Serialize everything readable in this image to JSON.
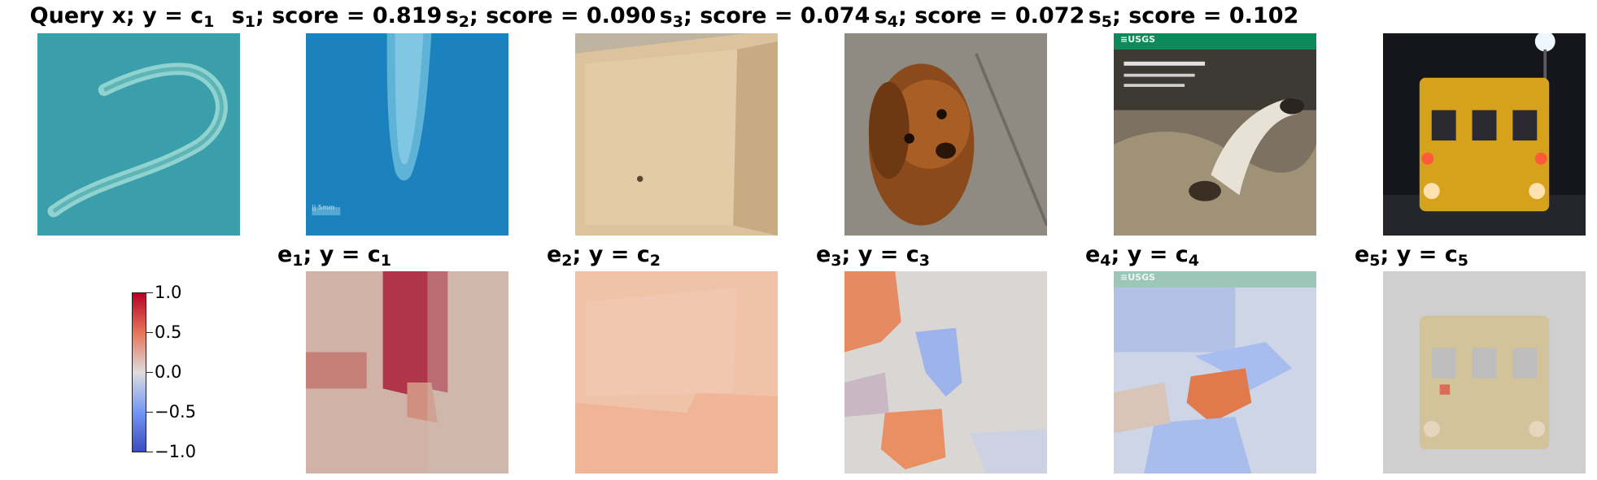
{
  "titles": {
    "query": {
      "prefix": "Query x; y = c",
      "sub": "1"
    },
    "s1": {
      "pre": "s",
      "sub": "1",
      "post": "; score = 0.819"
    },
    "s2": {
      "pre": "s",
      "sub": "2",
      "post": "; score = 0.090"
    },
    "s3": {
      "pre": "s",
      "sub": "3",
      "post": "; score = 0.074"
    },
    "s4": {
      "pre": "s",
      "sub": "4",
      "post": "; score = 0.072"
    },
    "s5": {
      "pre": "s",
      "sub": "5",
      "post": "; score = 0.102"
    },
    "e1": {
      "pre": "e",
      "sub": "1",
      "mid": "; y = c",
      "sub2": "1"
    },
    "e2": {
      "pre": "e",
      "sub": "2",
      "mid": "; y = c",
      "sub2": "2"
    },
    "e3": {
      "pre": "e",
      "sub": "3",
      "mid": "; y = c",
      "sub2": "3"
    },
    "e4": {
      "pre": "e",
      "sub": "4",
      "mid": "; y = c",
      "sub2": "4"
    },
    "e5": {
      "pre": "e",
      "sub": "5",
      "mid": "; y = c",
      "sub2": "5"
    }
  },
  "image_texts": {
    "usgs": "≡USGS",
    "scale": "|| 5mm"
  },
  "colorbar": {
    "ticks": [
      "1.0",
      "0.5",
      "0.0",
      "−0.5",
      "−1.0"
    ],
    "colors": [
      "#b40426",
      "#e7745b",
      "#dddddd",
      "#7396f5",
      "#3b4cc0"
    ]
  }
}
